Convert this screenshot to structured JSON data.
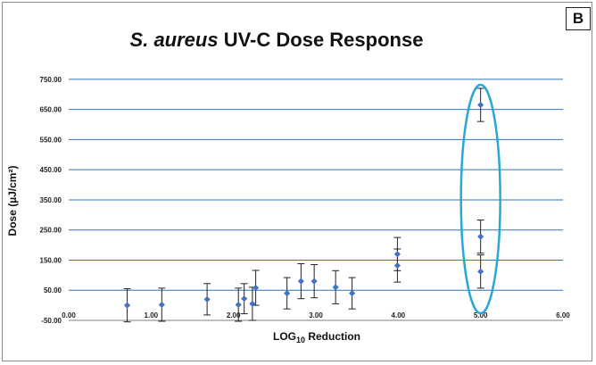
{
  "panel_label": "B",
  "colors": {
    "gridline": "#2e75b6",
    "marker": "#4472c4",
    "errorbar": "#222222",
    "highlight_ellipse": "#2aa7d8"
  },
  "chart_data": {
    "type": "scatter",
    "title_italic": "S. aureus",
    "title_rest": " UV-C Dose Response",
    "xlabel_main": "LOG",
    "xlabel_sub": "10",
    "xlabel_tail": " Reduction",
    "ylabel": "Dose (µJ/cm²)",
    "xlim": [
      0,
      6
    ],
    "ylim": [
      -50,
      800
    ],
    "x_ticks": [
      "0.00",
      "1.00",
      "2.00",
      "3.00",
      "4.00",
      "5.00",
      "6.00"
    ],
    "y_ticks": [
      "-50.00",
      "50.00",
      "150.00",
      "250.00",
      "350.00",
      "450.00",
      "550.00",
      "650.00",
      "750.00"
    ],
    "gridlines": true,
    "highlight": {
      "shape": "ellipse",
      "around_x": 5.0
    },
    "points": [
      {
        "x": 0.71,
        "y": 0,
        "err": 55
      },
      {
        "x": 1.13,
        "y": 2,
        "err": 55
      },
      {
        "x": 1.68,
        "y": 20,
        "err": 52
      },
      {
        "x": 2.06,
        "y": 2,
        "err": 55
      },
      {
        "x": 2.13,
        "y": 22,
        "err": 50
      },
      {
        "x": 2.23,
        "y": 5,
        "err": 55
      },
      {
        "x": 2.27,
        "y": 58,
        "err": 58
      },
      {
        "x": 2.65,
        "y": 40,
        "err": 52
      },
      {
        "x": 2.82,
        "y": 80,
        "err": 58
      },
      {
        "x": 2.98,
        "y": 80,
        "err": 55
      },
      {
        "x": 3.24,
        "y": 60,
        "err": 55
      },
      {
        "x": 3.44,
        "y": 40,
        "err": 52
      },
      {
        "x": 3.99,
        "y": 170,
        "err": 55
      },
      {
        "x": 3.99,
        "y": 132,
        "err": 55
      },
      {
        "x": 5.0,
        "y": 665,
        "err": 55
      },
      {
        "x": 5.0,
        "y": 228,
        "err": 55
      },
      {
        "x": 5.0,
        "y": 112,
        "err": 55
      }
    ]
  }
}
